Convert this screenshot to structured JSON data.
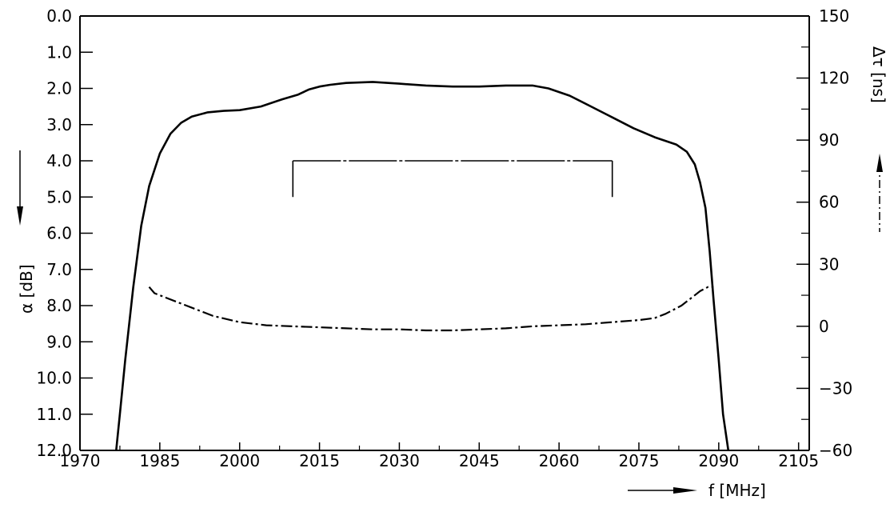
{
  "chart_data": {
    "type": "line",
    "xlabel": "f [MHz]",
    "ylabel_left": "α [dB]",
    "ylabel_right": "Δτ [ns]",
    "x_ticks": [
      1970,
      1985,
      2000,
      2015,
      2030,
      2045,
      2060,
      2075,
      2090,
      2105
    ],
    "y_left_ticks": [
      "0.0",
      "1.0",
      "2.0",
      "3.0",
      "4.0",
      "5.0",
      "6.0",
      "7.0",
      "8.0",
      "9.0",
      "10.0",
      "11.0",
      "12.0"
    ],
    "y_right_ticks": [
      "150",
      "120",
      "90",
      "60",
      "30",
      "0",
      "−30",
      "−60"
    ],
    "xlim": [
      1970,
      2107
    ],
    "ylim_left": [
      12.0,
      0.0
    ],
    "ylim_right": [
      -60,
      150
    ],
    "left_axis_direction": "inverted",
    "grid": false,
    "series": [
      {
        "axis": "left",
        "style": "solid",
        "x": [
          1976.8,
          1977.5,
          1978.5,
          1980,
          1981.5,
          1983,
          1985,
          1987,
          1989,
          1991,
          1994,
          1997,
          2000,
          2004,
          2008,
          2011,
          2013,
          2015,
          2017,
          2020,
          2025,
          2030,
          2035,
          2040,
          2045,
          2050,
          2055,
          2058,
          2062,
          2066,
          2070,
          2074,
          2078,
          2082,
          2084,
          2085.5,
          2086.5,
          2087.5,
          2088.3,
          2089,
          2090,
          2090.8,
          2091.8
        ],
        "y": [
          12.0,
          11.0,
          9.5,
          7.5,
          5.8,
          4.7,
          3.8,
          3.25,
          2.95,
          2.78,
          2.66,
          2.62,
          2.6,
          2.5,
          2.3,
          2.17,
          2.03,
          1.95,
          1.9,
          1.85,
          1.82,
          1.87,
          1.92,
          1.95,
          1.95,
          1.92,
          1.92,
          2.0,
          2.2,
          2.5,
          2.8,
          3.1,
          3.35,
          3.55,
          3.75,
          4.1,
          4.6,
          5.3,
          6.5,
          7.8,
          9.5,
          11.0,
          12.0
        ]
      },
      {
        "axis": "right",
        "style": "dash-dot",
        "x": [
          1983,
          1984,
          1986,
          1990,
          1995,
          2000,
          2005,
          2010,
          2015,
          2020,
          2025,
          2030,
          2035,
          2040,
          2045,
          2050,
          2055,
          2060,
          2065,
          2070,
          2075,
          2078,
          2080,
          2083,
          2085,
          2086.5,
          2088,
          2089
        ],
        "y": [
          19,
          16,
          14,
          10,
          5,
          2,
          0.5,
          0,
          -0.5,
          -1,
          -1.5,
          -1.5,
          -2,
          -2,
          -1.5,
          -1,
          0,
          0.5,
          1,
          2,
          3,
          4,
          6,
          10,
          14,
          17,
          19,
          19
        ]
      }
    ],
    "annotation_bracket": {
      "axis": "left",
      "x_start": 2010,
      "x_end": 2070,
      "y_top": 4.0,
      "y_bottom": 5.0
    }
  }
}
